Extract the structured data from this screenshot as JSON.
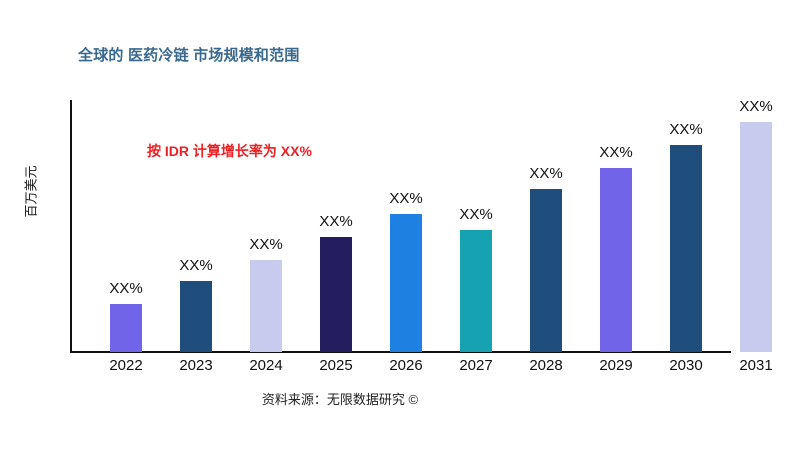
{
  "chart_data": {
    "type": "bar",
    "title": "全球的 医药冷链 市场规模和范围",
    "title_color": "#39698e",
    "ylabel": "百万美元",
    "xlabel": "",
    "annotation": "按 IDR 计算增长率为 XX%",
    "annotation_color": "#ed2024",
    "source": "资料来源：无限数据研究 ©",
    "categories": [
      "2022",
      "2023",
      "2024",
      "2025",
      "2026",
      "2027",
      "2028",
      "2029",
      "2030",
      "2031"
    ],
    "series": [
      {
        "name": "市场规模",
        "values_pct_of_max": [
          21,
          31,
          40,
          50,
          60,
          53,
          71,
          80,
          90,
          100
        ]
      }
    ],
    "data_labels": [
      "XX%",
      "XX%",
      "XX%",
      "XX%",
      "XX%",
      "XX%",
      "XX%",
      "XX%",
      "XX%",
      "XX%"
    ],
    "bar_colors": [
      "#7164e8",
      "#1f4e7c",
      "#c8caee",
      "#251e5e",
      "#1e80e0",
      "#17a2b2",
      "#1f4e7c",
      "#7164e8",
      "#1f4e7c",
      "#c8caee"
    ],
    "grid": false,
    "legend": "none"
  }
}
